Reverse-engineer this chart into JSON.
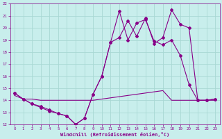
{
  "xlabel": "Windchill (Refroidissement éolien,°C)",
  "xlim": [
    -0.5,
    23.5
  ],
  "ylim": [
    12,
    22
  ],
  "xticks": [
    0,
    1,
    2,
    3,
    4,
    5,
    6,
    7,
    8,
    9,
    10,
    11,
    12,
    13,
    14,
    15,
    16,
    17,
    18,
    19,
    20,
    21,
    22,
    23
  ],
  "yticks": [
    12,
    13,
    14,
    15,
    16,
    17,
    18,
    19,
    20,
    21,
    22
  ],
  "background_color": "#c8eeec",
  "grid_color": "#a8d8d4",
  "line_color": "#880088",
  "line1_x": [
    0,
    1,
    2,
    3,
    4,
    5,
    6,
    7,
    8,
    9,
    10,
    11,
    12,
    13,
    14,
    15,
    16,
    17,
    18,
    19,
    20,
    21,
    22,
    23
  ],
  "line1_y": [
    14.6,
    14.1,
    13.7,
    13.5,
    13.2,
    12.9,
    12.7,
    12.0,
    12.5,
    14.5,
    16.0,
    18.8,
    21.4,
    19.0,
    20.4,
    20.7,
    18.9,
    18.6,
    19.0,
    17.7,
    15.3,
    14.0,
    14.0,
    14.1
  ],
  "line2_x": [
    0,
    1,
    2,
    3,
    4,
    5,
    6,
    7,
    8,
    9,
    10,
    11,
    12,
    13,
    14,
    15,
    16,
    17,
    18,
    19,
    20,
    21,
    22,
    23
  ],
  "line2_y": [
    14.6,
    14.1,
    13.7,
    13.4,
    13.1,
    12.9,
    12.7,
    12.0,
    12.5,
    14.5,
    16.0,
    18.8,
    19.2,
    20.6,
    19.3,
    20.8,
    18.7,
    19.2,
    21.5,
    20.3,
    20.0,
    14.0,
    14.0,
    14.1
  ],
  "line3_x": [
    0,
    1,
    2,
    3,
    4,
    5,
    6,
    7,
    8,
    9,
    10,
    11,
    12,
    13,
    14,
    15,
    16,
    17,
    18,
    19,
    20,
    21,
    22,
    23
  ],
  "line3_y": [
    14.4,
    14.1,
    14.1,
    14.0,
    14.0,
    14.0,
    14.0,
    14.0,
    14.0,
    14.0,
    14.1,
    14.2,
    14.3,
    14.4,
    14.5,
    14.6,
    14.7,
    14.8,
    14.0,
    14.0,
    14.0,
    14.0,
    14.0,
    14.0
  ]
}
